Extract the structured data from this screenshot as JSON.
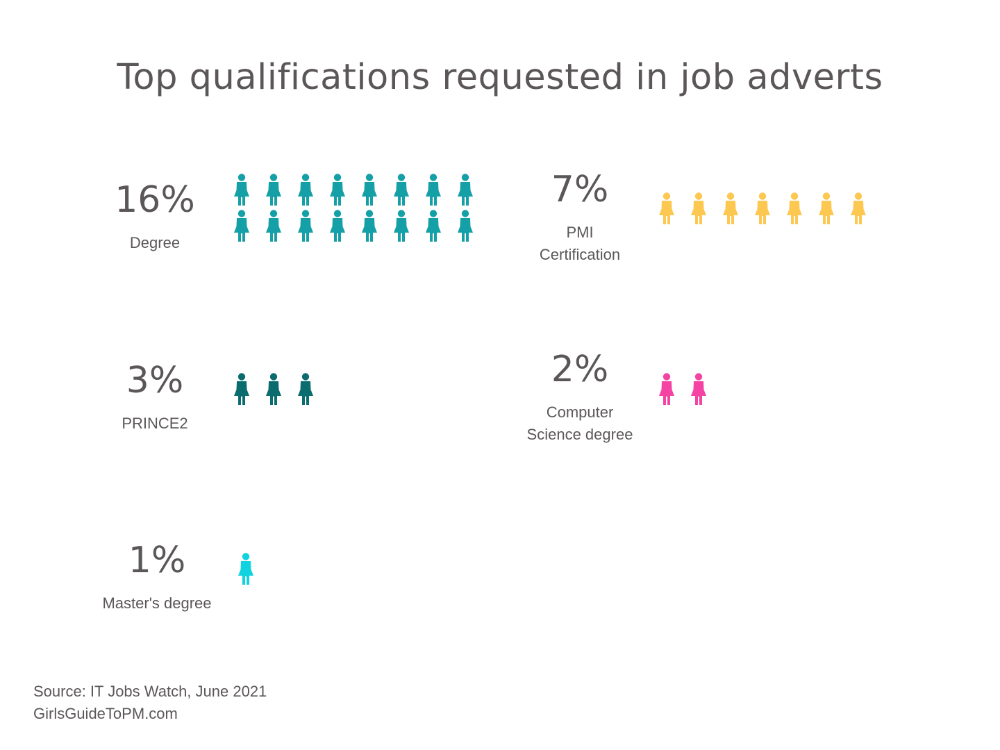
{
  "title": "Top qualifications requested in job adverts",
  "chart_data": {
    "type": "pictograph",
    "title": "Top qualifications requested in job adverts",
    "unit": "%",
    "items": [
      {
        "value": 16,
        "pct_label": "16%",
        "label": "Degree",
        "color": "#14a0a6"
      },
      {
        "value": 7,
        "pct_label": "7%",
        "label": "PMI\nCertification",
        "color": "#fdc851"
      },
      {
        "value": 3,
        "pct_label": "3%",
        "label": "PRINCE2",
        "color": "#0b6c70"
      },
      {
        "value": 2,
        "pct_label": "2%",
        "label": "Computer\nScience degree",
        "color": "#f543a4"
      },
      {
        "value": 1,
        "pct_label": "1%",
        "label": "Master's degree",
        "color": "#11d3e0"
      }
    ]
  },
  "footer": {
    "source": "Source: IT Jobs Watch, June 2021",
    "site": "GirlsGuideToPM.com"
  },
  "icon_name": "person-icon"
}
